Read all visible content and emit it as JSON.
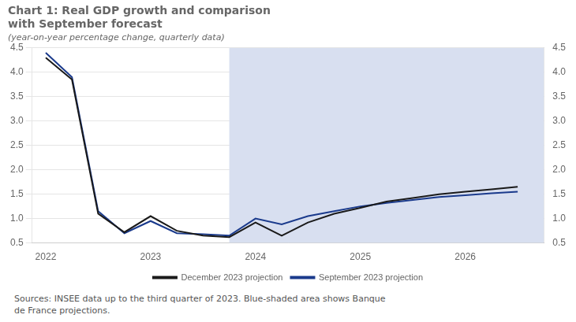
{
  "chart_data": {
    "type": "line",
    "title": "Chart 1: Real GDP growth and comparison\nwith September forecast",
    "subtitle": "(year-on-year percentage change, quarterly data)",
    "annotations": [
      "Sources: INSEE data up to the third quarter of 2023. Blue-shaded area shows Banque\nde France projections."
    ],
    "x": [
      2022.0,
      2022.25,
      2022.5,
      2022.75,
      2023.0,
      2023.25,
      2023.5,
      2023.75,
      2024.0,
      2024.25,
      2024.5,
      2024.75,
      2025.0,
      2025.25,
      2025.5,
      2025.75,
      2026.0,
      2026.25,
      2026.5
    ],
    "series": [
      {
        "name": "December 2023 projection",
        "color": "#1a1a1a",
        "values": [
          4.3,
          3.85,
          1.1,
          0.72,
          1.05,
          0.75,
          0.65,
          0.62,
          0.92,
          0.65,
          0.92,
          1.1,
          1.22,
          1.35,
          1.42,
          1.5,
          1.55,
          1.6,
          1.65
        ]
      },
      {
        "name": "September 2023 projection",
        "color": "#1a3a8c",
        "values": [
          4.4,
          3.9,
          1.15,
          0.7,
          0.95,
          0.7,
          0.68,
          0.65,
          1.0,
          0.88,
          1.05,
          1.15,
          1.25,
          1.32,
          1.38,
          1.44,
          1.48,
          1.52,
          1.55
        ]
      }
    ],
    "shaded_region": {
      "x": [
        2023.75,
        2026.75
      ],
      "color": "#d8dff0"
    },
    "xlim": [
      2021.87,
      2026.75
    ],
    "xticks": [
      2022,
      2023,
      2024,
      2025,
      2026
    ],
    "ylim": [
      0.5,
      4.5
    ],
    "yticks": [
      0.5,
      {
        "value": 1.0,
        "label": "1.0"
      },
      1.5,
      {
        "value": 2.0,
        "label": "2.0"
      },
      2.5,
      {
        "value": 3.0,
        "label": "3.0"
      },
      3.5,
      {
        "value": 4.0,
        "label": "4.0"
      },
      4.5
    ],
    "y2lim": [
      0.5,
      4.5
    ],
    "y2ticks": [
      0.5,
      {
        "value": 1.0,
        "label": "1.0"
      },
      1.5,
      {
        "value": 2.0,
        "label": "2.0"
      },
      2.5,
      {
        "value": 3.0,
        "label": "3.0"
      },
      3.5,
      {
        "value": 4.0,
        "label": "4.0"
      },
      4.5
    ],
    "grid": "y",
    "legend": "bottom",
    "marker": "none"
  }
}
